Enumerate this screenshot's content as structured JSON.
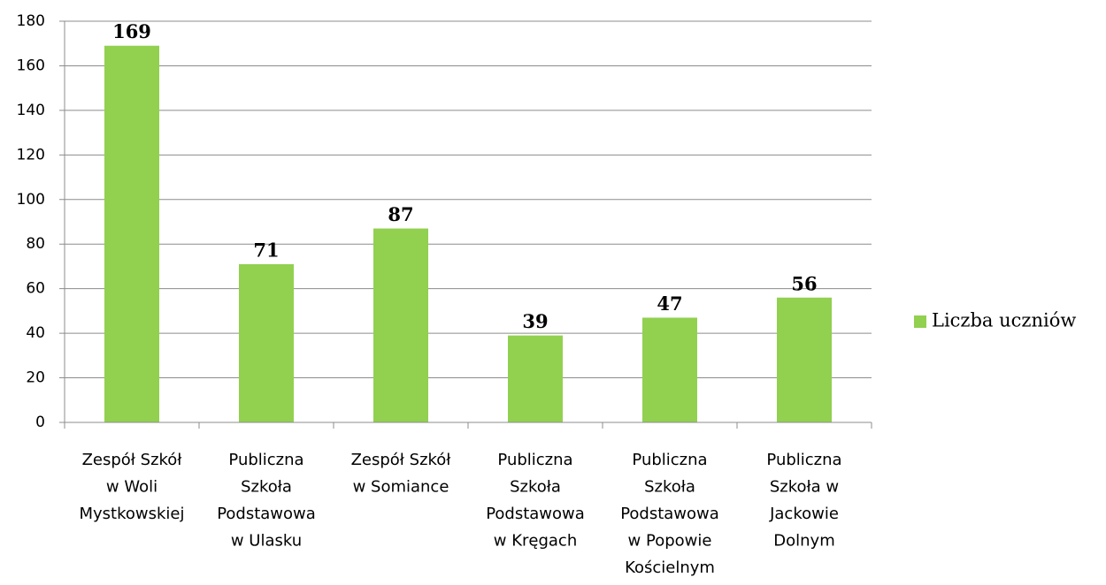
{
  "chart_data": {
    "type": "bar",
    "categories": [
      [
        "Zespół Szkół",
        "w Woli",
        "Mystkowskiej"
      ],
      [
        "Publiczna",
        "Szkoła",
        "Podstawowa",
        "w Ulasku"
      ],
      [
        "Zespół Szkół",
        "w Somiance"
      ],
      [
        "Publiczna",
        "Szkoła",
        "Podstawowa",
        "w Kręgach"
      ],
      [
        "Publiczna",
        "Szkoła",
        "Podstawowa",
        "w Popowie",
        "Kościelnym"
      ],
      [
        "Publiczna",
        "Szkoła w",
        "Jackowie",
        "Dolnym"
      ]
    ],
    "series": [
      {
        "name": "Liczba uczniów",
        "color": "#92d050",
        "values": [
          169,
          71,
          87,
          39,
          47,
          56
        ]
      }
    ],
    "ylim": [
      0,
      180
    ],
    "yticks": [
      0,
      20,
      40,
      60,
      80,
      100,
      120,
      140,
      160,
      180
    ],
    "grid": true,
    "legend": "right"
  }
}
